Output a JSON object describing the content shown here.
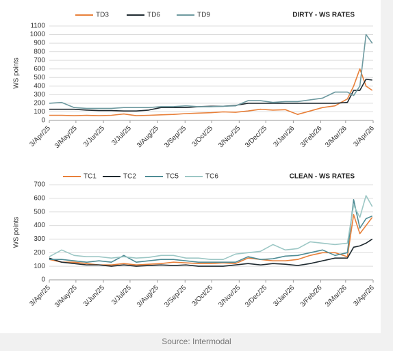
{
  "chart_data": [
    {
      "type": "line",
      "title": "DIRTY - WS RATES",
      "y_label": "WS points",
      "grid": true,
      "legend": "top",
      "x": [
        "2025-04-03",
        "2025-04-17",
        "2025-05-01",
        "2025-05-15",
        "2025-05-29",
        "2025-06-12",
        "2025-06-26",
        "2025-07-10",
        "2025-07-24",
        "2025-08-07",
        "2025-08-21",
        "2025-09-04",
        "2025-09-18",
        "2025-10-02",
        "2025-10-16",
        "2025-10-30",
        "2025-11-13",
        "2025-11-27",
        "2025-12-11",
        "2025-12-25",
        "2026-01-08",
        "2026-01-22",
        "2026-02-05",
        "2026-02-19",
        "2026-03-05",
        "2026-03-12",
        "2026-03-19",
        "2026-03-26",
        "2026-04-02"
      ],
      "xlim": [
        "2025-04-03",
        "2026-04-03"
      ],
      "xticks": [
        {
          "value": "2025-04-03",
          "label": "3/Apr/25"
        },
        {
          "value": "2025-05-03",
          "label": "3/May/25"
        },
        {
          "value": "2025-06-03",
          "label": "3/Jun/25"
        },
        {
          "value": "2025-07-03",
          "label": "3/Jul/25"
        },
        {
          "value": "2025-08-03",
          "label": "3/Aug/25"
        },
        {
          "value": "2025-09-03",
          "label": "3/Sep/25"
        },
        {
          "value": "2025-10-03",
          "label": "3/Oct/25"
        },
        {
          "value": "2025-11-03",
          "label": "3/Nov/25"
        },
        {
          "value": "2025-12-03",
          "label": "3/Dec/25"
        },
        {
          "value": "2026-01-03",
          "label": "3/Jan/26"
        },
        {
          "value": "2026-02-03",
          "label": "3/Feb/26"
        },
        {
          "value": "2026-03-03",
          "label": "3/Mar/26"
        },
        {
          "value": "2026-04-03",
          "label": "3/Apr/26"
        }
      ],
      "ylim": [
        0,
        1100
      ],
      "yticks": [
        0,
        100,
        200,
        300,
        400,
        500,
        600,
        700,
        800,
        900,
        1000,
        1100
      ],
      "series": [
        {
          "name": "TD3",
          "color": "#e8803a",
          "values": [
            60,
            60,
            55,
            60,
            55,
            60,
            75,
            55,
            60,
            65,
            70,
            80,
            85,
            90,
            100,
            95,
            110,
            130,
            120,
            125,
            70,
            110,
            150,
            170,
            250,
            400,
            600,
            400,
            350
          ]
        },
        {
          "name": "TD6",
          "color": "#1f2a30",
          "values": [
            130,
            130,
            130,
            120,
            115,
            115,
            110,
            110,
            120,
            150,
            150,
            150,
            160,
            165,
            165,
            175,
            200,
            200,
            200,
            200,
            200,
            200,
            200,
            200,
            210,
            350,
            350,
            480,
            470
          ]
        },
        {
          "name": "TD9",
          "color": "#6e9aa0",
          "values": [
            200,
            210,
            150,
            140,
            140,
            140,
            150,
            150,
            150,
            160,
            160,
            170,
            160,
            160,
            165,
            170,
            230,
            230,
            210,
            220,
            220,
            240,
            260,
            330,
            330,
            290,
            400,
            1000,
            900
          ]
        }
      ]
    },
    {
      "type": "line",
      "title": "CLEAN - WS RATES",
      "y_label": "WS points",
      "grid": true,
      "legend": "top",
      "x": [
        "2025-04-03",
        "2025-04-17",
        "2025-05-01",
        "2025-05-15",
        "2025-05-29",
        "2025-06-12",
        "2025-06-26",
        "2025-07-10",
        "2025-07-24",
        "2025-08-07",
        "2025-08-21",
        "2025-09-04",
        "2025-09-18",
        "2025-10-02",
        "2025-10-16",
        "2025-10-30",
        "2025-11-13",
        "2025-11-27",
        "2025-12-11",
        "2025-12-25",
        "2026-01-08",
        "2026-01-22",
        "2026-02-05",
        "2026-02-19",
        "2026-03-05",
        "2026-03-12",
        "2026-03-19",
        "2026-03-26",
        "2026-04-02"
      ],
      "xlim": [
        "2025-04-03",
        "2026-04-03"
      ],
      "xticks": [
        {
          "value": "2025-04-03",
          "label": "3/Apr/25"
        },
        {
          "value": "2025-05-03",
          "label": "3/May/25"
        },
        {
          "value": "2025-06-03",
          "label": "3/Jun/25"
        },
        {
          "value": "2025-07-03",
          "label": "3/Jul/25"
        },
        {
          "value": "2025-08-03",
          "label": "3/Aug/25"
        },
        {
          "value": "2025-09-03",
          "label": "3/Sep/25"
        },
        {
          "value": "2025-10-03",
          "label": "3/Oct/25"
        },
        {
          "value": "2025-11-03",
          "label": "3/Nov/25"
        },
        {
          "value": "2025-12-03",
          "label": "3/Dec/25"
        },
        {
          "value": "2026-01-03",
          "label": "3/Jan/26"
        },
        {
          "value": "2026-02-03",
          "label": "3/Feb/26"
        },
        {
          "value": "2026-03-03",
          "label": "3/Mar/26"
        },
        {
          "value": "2026-04-03",
          "label": "3/Apr/26"
        }
      ],
      "ylim": [
        0,
        700
      ],
      "yticks": [
        0,
        100,
        200,
        300,
        400,
        500,
        600,
        700
      ],
      "series": [
        {
          "name": "TC1",
          "color": "#e8803a",
          "values": [
            150,
            130,
            130,
            120,
            110,
            110,
            120,
            110,
            115,
            120,
            130,
            125,
            120,
            120,
            125,
            120,
            160,
            150,
            140,
            140,
            150,
            180,
            200,
            200,
            170,
            480,
            340,
            400,
            460
          ]
        },
        {
          "name": "TC2",
          "color": "#1f2a30",
          "values": [
            160,
            130,
            120,
            110,
            110,
            100,
            110,
            100,
            105,
            110,
            105,
            110,
            100,
            100,
            100,
            110,
            120,
            110,
            120,
            115,
            105,
            120,
            140,
            160,
            160,
            240,
            250,
            270,
            300
          ]
        },
        {
          "name": "TC5",
          "color": "#4f8c95",
          "values": [
            150,
            150,
            140,
            130,
            140,
            130,
            180,
            130,
            140,
            150,
            150,
            140,
            130,
            130,
            130,
            130,
            170,
            150,
            155,
            175,
            180,
            200,
            220,
            180,
            200,
            590,
            380,
            450,
            470
          ]
        },
        {
          "name": "TC6",
          "color": "#9cc7c5",
          "values": [
            170,
            220,
            180,
            170,
            170,
            160,
            170,
            160,
            165,
            180,
            180,
            160,
            160,
            150,
            150,
            190,
            200,
            210,
            260,
            220,
            230,
            280,
            270,
            260,
            270,
            550,
            460,
            620,
            540
          ]
        }
      ]
    }
  ],
  "source": "Source: Intermodal"
}
